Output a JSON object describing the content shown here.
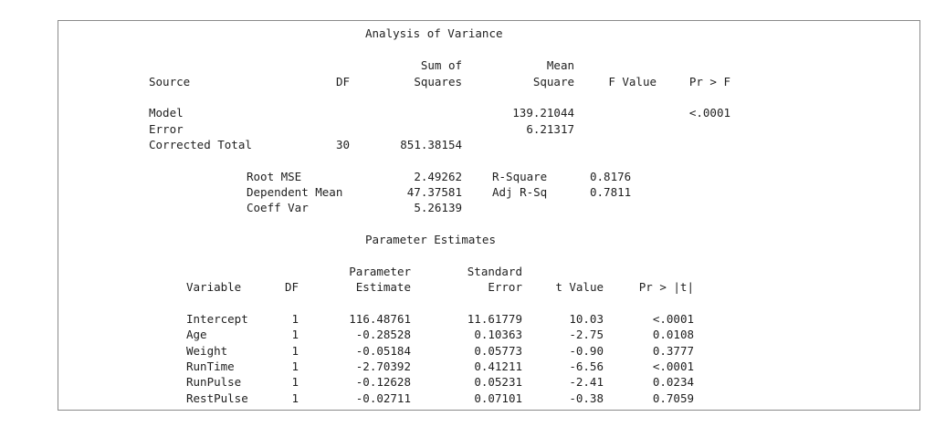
{
  "anova": {
    "title": "Analysis of Variance",
    "headers": {
      "source": "Source",
      "df": "DF",
      "ss_line1": "Sum of",
      "ss_line2": "Squares",
      "ms_line1": "Mean",
      "ms_line2": "Square",
      "fvalue": "F Value",
      "prf": "Pr > F"
    },
    "rows": [
      {
        "source": "Model",
        "df": "",
        "ss": "",
        "ms": "139.21044",
        "f": "",
        "p": "<.0001"
      },
      {
        "source": "Error",
        "df": "",
        "ss": "",
        "ms": "6.21317",
        "f": "",
        "p": ""
      },
      {
        "source": "Corrected Total",
        "df": "30",
        "ss": "851.38154",
        "ms": "",
        "f": "",
        "p": ""
      }
    ]
  },
  "fit": {
    "root_mse_label": "Root MSE",
    "root_mse": "2.49262",
    "dep_mean_label": "Dependent Mean",
    "dep_mean": "47.37581",
    "coeff_var_label": "Coeff Var",
    "coeff_var": "5.26139",
    "rsq_label": "R-Square",
    "rsq": "0.8176",
    "adjrsq_label": "Adj R-Sq",
    "adjrsq": "0.7811"
  },
  "params": {
    "title": "Parameter Estimates",
    "headers": {
      "variable": "Variable",
      "df": "DF",
      "est_line1": "Parameter",
      "est_line2": "Estimate",
      "se_line1": "Standard",
      "se_line2": "Error",
      "t": "t Value",
      "p": "Pr > |t|"
    },
    "rows": [
      {
        "variable": "Intercept",
        "df": "1",
        "estimate": "116.48761",
        "se": "11.61779",
        "t": "10.03",
        "p": "<.0001"
      },
      {
        "variable": "Age",
        "df": "1",
        "estimate": "-0.28528",
        "se": "0.10363",
        "t": "-2.75",
        "p": "0.0108"
      },
      {
        "variable": "Weight",
        "df": "1",
        "estimate": "-0.05184",
        "se": "0.05773",
        "t": "-0.90",
        "p": "0.3777"
      },
      {
        "variable": "RunTime",
        "df": "1",
        "estimate": "-2.70392",
        "se": "0.41211",
        "t": "-6.56",
        "p": "<.0001"
      },
      {
        "variable": "RunPulse",
        "df": "1",
        "estimate": "-0.12628",
        "se": "0.05231",
        "t": "-2.41",
        "p": "0.0234"
      },
      {
        "variable": "RestPulse",
        "df": "1",
        "estimate": "-0.02711",
        "se": "0.07101",
        "t": "-0.38",
        "p": "0.7059"
      }
    ]
  }
}
